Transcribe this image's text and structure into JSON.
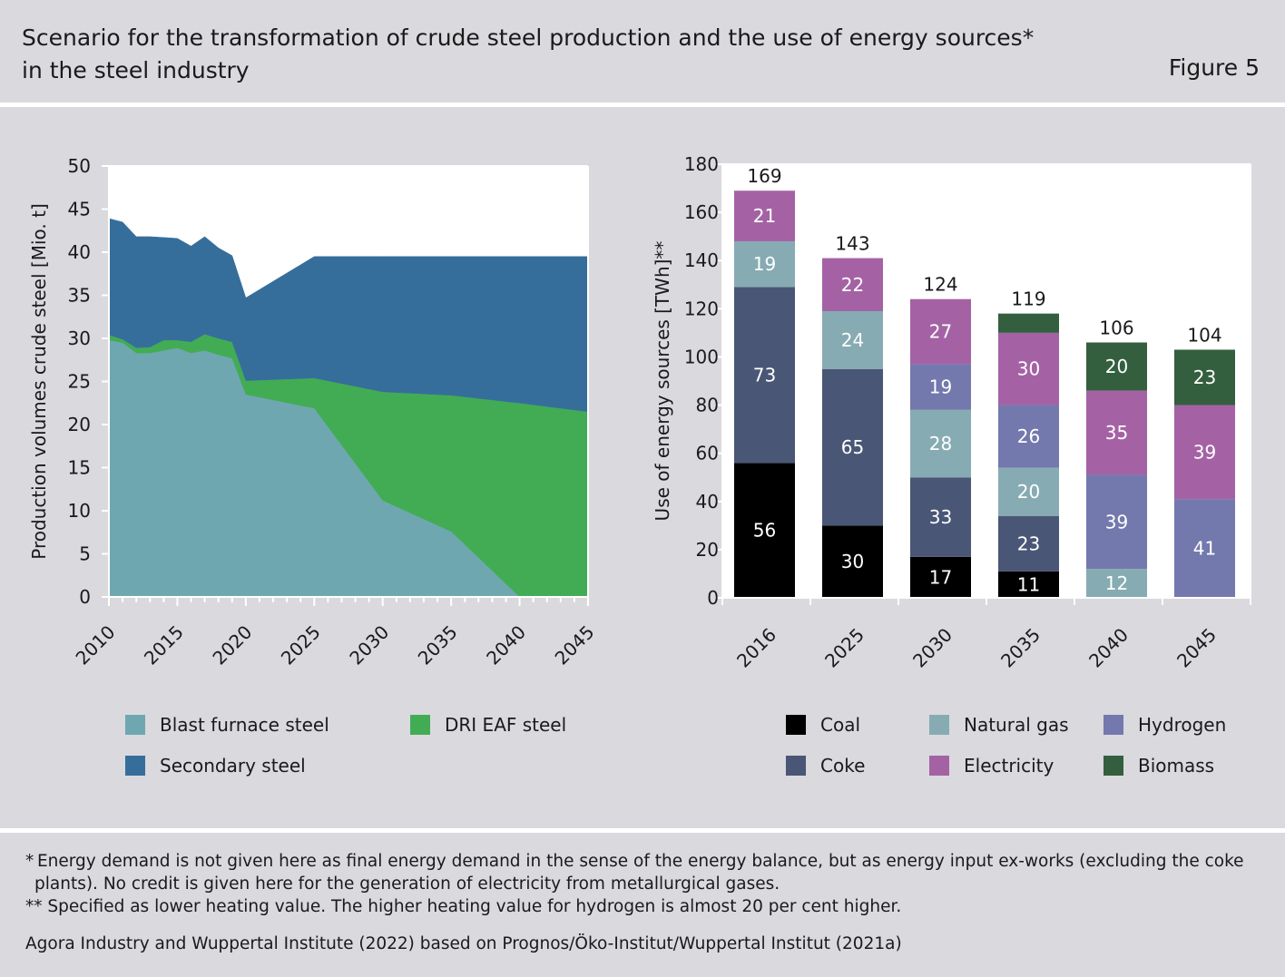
{
  "header": {
    "title_line1": "Scenario for the transformation of crude steel production and the use of energy sources*",
    "title_line2": "in the steel industry",
    "figure_label": "Figure 5"
  },
  "chart_data": [
    {
      "type": "area",
      "stacked": true,
      "ylabel": "Production volumes crude steel [Mio. t]",
      "xlabel": "",
      "ylim": [
        0,
        50
      ],
      "xlim": [
        2010,
        2045
      ],
      "yticks": [
        0,
        5,
        10,
        15,
        20,
        25,
        30,
        35,
        40,
        45,
        50
      ],
      "xticks": [
        2010,
        2015,
        2020,
        2025,
        2030,
        2035,
        2040,
        2045
      ],
      "x": [
        2010,
        2011,
        2012,
        2013,
        2014,
        2015,
        2016,
        2017,
        2018,
        2019,
        2020,
        2025,
        2030,
        2035,
        2040,
        2045
      ],
      "series": [
        {
          "name": "Blast furnace steel",
          "color": "#6fa7b1",
          "values": [
            29.8,
            29.5,
            28.3,
            28.3,
            28.6,
            28.9,
            28.3,
            28.6,
            28.1,
            27.7,
            23.5,
            21.9,
            11.2,
            7.6,
            0,
            0
          ]
        },
        {
          "name": "DRI EAF steel",
          "color": "#42ac55",
          "values": [
            0.6,
            0.4,
            0.6,
            0.7,
            1.2,
            0.9,
            1.3,
            1.9,
            1.9,
            1.9,
            1.6,
            3.5,
            12.6,
            15.8,
            22.5,
            21.5
          ]
        },
        {
          "name": "Secondary steel",
          "color": "#366e9b",
          "values": [
            13.5,
            13.6,
            12.9,
            12.8,
            11.9,
            11.8,
            11.1,
            11.3,
            10.5,
            10.0,
            9.6,
            14.1,
            15.7,
            16.1,
            17.0,
            18.0
          ]
        }
      ],
      "legend": [
        {
          "name": "Blast furnace steel",
          "color": "#6fa7b1"
        },
        {
          "name": "DRI EAF steel",
          "color": "#42ac55"
        },
        {
          "name": "Secondary steel",
          "color": "#366e9b"
        }
      ],
      "grid": false
    },
    {
      "type": "bar",
      "stacked": true,
      "ylabel": "Use of energy sources [TWh]**",
      "xlabel": "",
      "ylim": [
        0,
        180
      ],
      "yticks": [
        0,
        20,
        40,
        60,
        80,
        100,
        120,
        140,
        160,
        180
      ],
      "categories": [
        "2016",
        "2025",
        "2030",
        "2035",
        "2040",
        "2045"
      ],
      "totals": [
        "169",
        "143",
        "124",
        "119",
        "106",
        "104"
      ],
      "series": [
        {
          "name": "Coal",
          "color": "#000000",
          "label_color": "#ffffff",
          "values": [
            56,
            30,
            17,
            11,
            0,
            0
          ],
          "labels": [
            "56",
            "30",
            "17",
            "11",
            "",
            ""
          ]
        },
        {
          "name": "Coke",
          "color": "#4a5676",
          "label_color": "#ffffff",
          "values": [
            73,
            65,
            33,
            23,
            0,
            0
          ],
          "labels": [
            "73",
            "65",
            "33",
            "23",
            "",
            ""
          ]
        },
        {
          "name": "Natural gas",
          "color": "#87abb3",
          "label_color": "#ffffff",
          "values": [
            19,
            24,
            28,
            20,
            12,
            0
          ],
          "labels": [
            "19",
            "24",
            "28",
            "20",
            "12",
            ""
          ]
        },
        {
          "name": "Hydrogen",
          "color": "#7379ad",
          "label_color": "#ffffff",
          "values": [
            0,
            0,
            19,
            26,
            39,
            41
          ],
          "labels": [
            "",
            "",
            "19",
            "26",
            "39",
            "41"
          ]
        },
        {
          "name": "Electricity",
          "color": "#a462a5",
          "label_color": "#ffffff",
          "values": [
            21,
            22,
            27,
            30,
            35,
            39
          ],
          "labels": [
            "21",
            "22",
            "27",
            "30",
            "35",
            "39"
          ]
        },
        {
          "name": "Biomass",
          "color": "#335f3e",
          "label_color": "#ffffff",
          "values": [
            0,
            0,
            0,
            8,
            20,
            23
          ],
          "labels": [
            "",
            "",
            "",
            "",
            "20",
            "23"
          ]
        }
      ],
      "legend": [
        {
          "name": "Coal",
          "color": "#000000"
        },
        {
          "name": "Natural gas",
          "color": "#87abb3"
        },
        {
          "name": "Hydrogen",
          "color": "#7379ad"
        },
        {
          "name": "Coke",
          "color": "#4a5676"
        },
        {
          "name": "Electricity",
          "color": "#a462a5"
        },
        {
          "name": "Biomass",
          "color": "#335f3e"
        }
      ],
      "grid": false
    }
  ],
  "footnotes": {
    "note1": "* Energy demand is not given here as final energy demand in the sense of the energy balance, but as energy input ex-works (excluding the coke plants). No credit is given here for the generation of electricity from metallurgical gases.",
    "note2": "** Specified as lower heating value. The higher heating value for hydrogen is almost 20 per cent higher."
  },
  "source": "Agora Industry and Wuppertal Institute (2022) based on Prognos/Öko-Institut/Wuppertal Institut (2021a)"
}
